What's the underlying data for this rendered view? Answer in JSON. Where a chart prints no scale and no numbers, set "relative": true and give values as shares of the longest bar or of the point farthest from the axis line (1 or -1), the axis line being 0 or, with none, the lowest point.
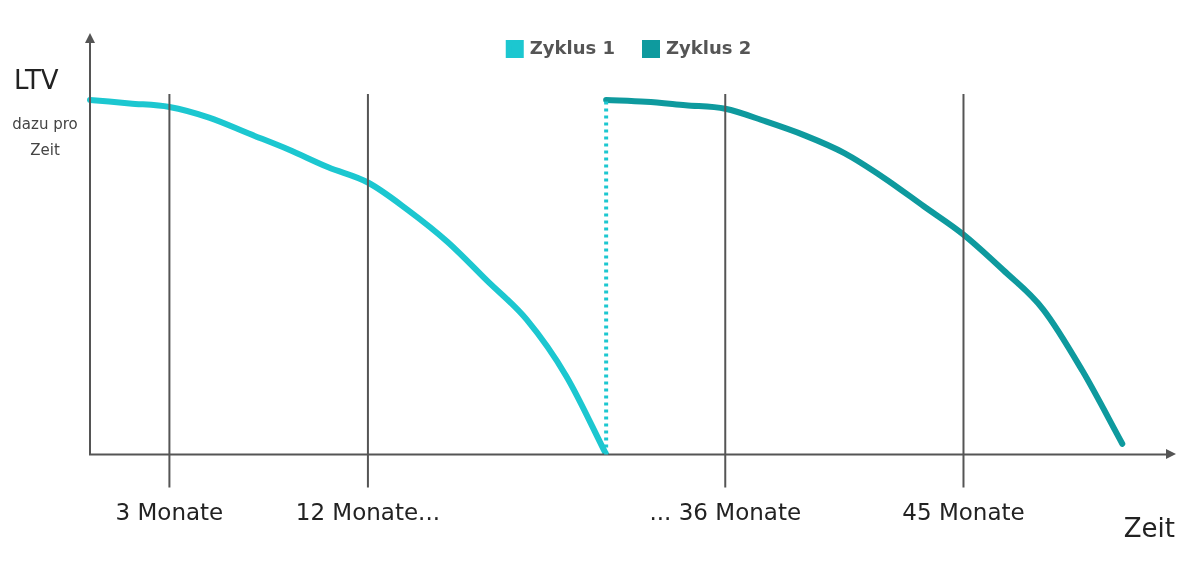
{
  "chart_data": {
    "type": "line",
    "relative": true,
    "ylabel": "LTV",
    "xlabel": "Zeit",
    "annotations": [
      "dazu pro Zeit"
    ],
    "categories": [
      null,
      null,
      "3 Monate",
      null,
      null,
      null,
      null,
      "12 Monate...",
      null,
      null,
      null,
      null,
      null,
      null,
      null,
      null,
      "... 36 Monate",
      null,
      null,
      null,
      null,
      null,
      "45 Monate",
      null,
      null,
      null,
      null,
      null
    ],
    "grid": "x",
    "legend": "top",
    "marker": "none",
    "line_style": "solid",
    "series": [
      {
        "name": "Zyklus 1",
        "color": "#1cc7d0",
        "values": [
          1,
          0.99,
          0.98,
          0.95,
          0.905,
          0.86,
          0.81,
          0.767,
          0.69,
          0.6,
          0.49,
          0.38,
          0.22,
          0,
          null,
          null,
          null,
          null,
          null,
          null,
          null,
          null,
          null,
          null,
          null,
          null,
          null,
          null
        ]
      },
      {
        "name": "Zyklus 2",
        "color": "#0e9a9e",
        "values": [
          null,
          null,
          null,
          null,
          null,
          null,
          null,
          null,
          null,
          null,
          null,
          null,
          null,
          1,
          0.995,
          0.985,
          0.975,
          0.94,
          0.9,
          0.85,
          0.78,
          0.7,
          0.62,
          0.52,
          0.41,
          0.235,
          0.03,
          null
        ]
      }
    ]
  }
}
